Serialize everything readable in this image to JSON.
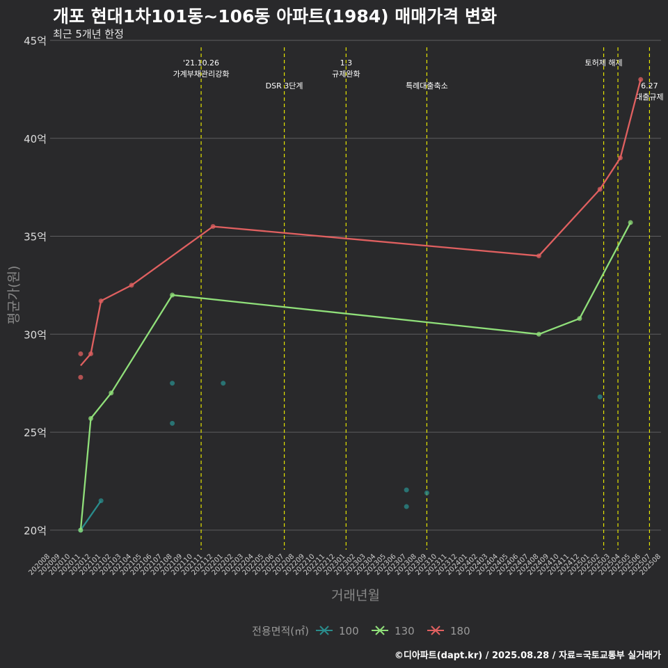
{
  "chart_data": {
    "type": "line",
    "title": "개포 현대1차101동~106동 아파트(1984) 매매가격 변화",
    "subtitle": "최근 5개년 한정",
    "xlabel": "거래년월",
    "ylabel": "평균가(원)",
    "ylim": [
      19,
      45
    ],
    "yticks": [
      20,
      25,
      30,
      35,
      40,
      45
    ],
    "ytick_labels": [
      "20억",
      "25억",
      "30억",
      "35억",
      "40억",
      "45억"
    ],
    "xlim": [
      "2020-08",
      "2025-08"
    ],
    "x_tick_labels": [
      "202008",
      "202009",
      "202010",
      "202011",
      "202012",
      "202101",
      "202102",
      "202103",
      "202104",
      "202105",
      "202106",
      "202107",
      "202108",
      "202109",
      "202110",
      "202111",
      "202112",
      "202201",
      "202202",
      "202203",
      "202204",
      "202205",
      "202206",
      "202207",
      "202208",
      "202209",
      "202210",
      "202211",
      "202212",
      "202301",
      "202302",
      "202303",
      "202304",
      "202305",
      "202306",
      "202307",
      "202308",
      "202309",
      "202310",
      "202311",
      "202312",
      "202401",
      "202402",
      "202403",
      "202404",
      "202405",
      "202406",
      "202407",
      "202408",
      "202409",
      "202410",
      "202411",
      "202412",
      "202501",
      "202502",
      "202503",
      "202504",
      "202505",
      "202506",
      "202507",
      "202508"
    ],
    "grid": true,
    "legend": {
      "title": "전용면적(㎡)",
      "position": "bottom",
      "entries": [
        {
          "label": "100",
          "color": "#2a8c8c"
        },
        {
          "label": "130",
          "color": "#90e07a"
        },
        {
          "label": "180",
          "color": "#e06060"
        }
      ]
    },
    "events": [
      {
        "date": "2021-10-26",
        "label_lines": [
          "'21.10.26",
          "가계부채관리강화"
        ],
        "row": 0
      },
      {
        "date": "2022-07-01",
        "label_lines": [
          "DSR 3단계"
        ],
        "row": 1
      },
      {
        "date": "2023-01-03",
        "label_lines": [
          "1.3",
          "규제완화"
        ],
        "row": 0
      },
      {
        "date": "2023-09-01",
        "label_lines": [
          "특례대출축소"
        ],
        "row": 1
      },
      {
        "date": "2025-02-12",
        "label_lines": [
          "토허제 해제"
        ],
        "row": 0
      },
      {
        "date": "2025-03-24",
        "label_lines": [],
        "row": 0
      },
      {
        "date": "2025-06-27",
        "label_lines": [
          "6.27",
          "대출규제"
        ],
        "row": 1
      }
    ],
    "series": [
      {
        "name": "100",
        "color": "#2a8c8c",
        "line": [
          [
            "2020-11",
            20.0
          ],
          [
            "2021-01",
            21.5
          ]
        ],
        "points": [
          [
            "2020-11",
            20.0
          ],
          [
            "2021-01",
            21.5
          ],
          [
            "2021-08",
            27.5
          ],
          [
            "2021-08",
            25.45
          ],
          [
            "2022-01",
            27.5
          ],
          [
            "2023-07",
            22.05
          ],
          [
            "2023-07",
            21.2
          ],
          [
            "2023-09",
            21.9
          ],
          [
            "2025-02",
            26.8
          ]
        ]
      },
      {
        "name": "130",
        "color": "#90e07a",
        "line": [
          [
            "2020-11",
            20.0
          ],
          [
            "2020-12",
            25.7
          ],
          [
            "2021-02",
            27.0
          ],
          [
            "2021-08",
            32.0
          ],
          [
            "2024-08",
            30.0
          ],
          [
            "2024-12",
            30.8
          ],
          [
            "2025-05",
            35.7
          ]
        ],
        "points": [
          [
            "2020-11",
            20.0
          ],
          [
            "2020-12",
            25.7
          ],
          [
            "2021-02",
            27.0
          ],
          [
            "2021-08",
            32.0
          ],
          [
            "2024-08",
            30.0
          ],
          [
            "2024-12",
            30.8
          ],
          [
            "2025-05",
            35.7
          ]
        ]
      },
      {
        "name": "180",
        "color": "#e06060",
        "line": [
          [
            "2020-11",
            28.4
          ],
          [
            "2020-12",
            29.0
          ],
          [
            "2021-01",
            31.7
          ],
          [
            "2021-04",
            32.5
          ],
          [
            "2021-12",
            35.5
          ],
          [
            "2024-08",
            34.0
          ],
          [
            "2025-02",
            37.4
          ],
          [
            "2025-04",
            39.0
          ],
          [
            "2025-06",
            43.0
          ]
        ],
        "points": [
          [
            "2020-11",
            29.0
          ],
          [
            "2020-11",
            27.8
          ],
          [
            "2020-12",
            29.0
          ],
          [
            "2021-01",
            31.7
          ],
          [
            "2021-04",
            32.5
          ],
          [
            "2021-12",
            35.5
          ],
          [
            "2024-08",
            34.0
          ],
          [
            "2025-02",
            37.4
          ],
          [
            "2025-04",
            39.0
          ],
          [
            "2025-06",
            43.0
          ]
        ]
      }
    ]
  },
  "credit": "©디아파트(dapt.kr) / 2025.08.28 / 자료=국토교통부 실거래가"
}
